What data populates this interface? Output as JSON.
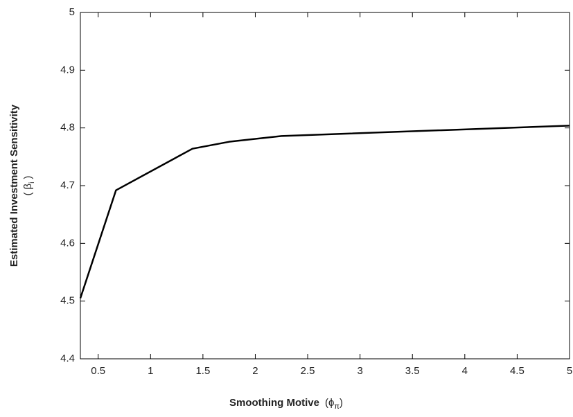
{
  "chart_data": {
    "type": "line",
    "x_label": {
      "text": "Smoothing Motive",
      "open": "(",
      "symbol": "ϕ",
      "subscript": "π",
      "close": ")"
    },
    "y_label": {
      "text": "Estimated Investment Sensitivity",
      "open": "(",
      "symbol": "β",
      "subscript": "i",
      "close": ")"
    },
    "x": [
      0.33,
      0.67,
      1.4,
      1.75,
      2.25,
      5
    ],
    "series": [
      {
        "color": "#000000",
        "values": [
          4.505,
          4.692,
          4.764,
          4.776,
          4.786,
          4.804
        ]
      }
    ],
    "xlim": [
      0.33,
      5
    ],
    "ylim": [
      4.4,
      5
    ],
    "xticks": [
      0.5,
      1,
      1.5,
      2,
      2.5,
      3,
      3.5,
      4,
      4.5,
      5
    ],
    "yticks": [
      4.4,
      4.5,
      4.6,
      4.7,
      4.8,
      4.9,
      5
    ],
    "grid": false
  }
}
